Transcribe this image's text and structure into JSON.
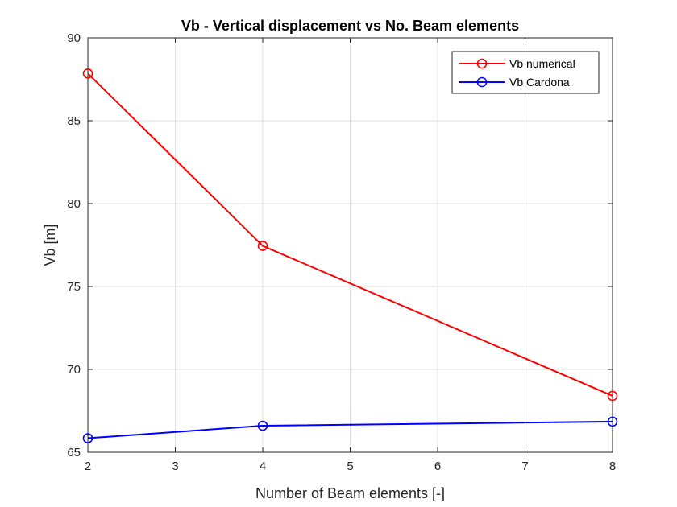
{
  "chart_data": {
    "type": "line",
    "title": "Vb - Vertical displacement vs No. Beam elements",
    "xlabel": "Number of Beam elements [-]",
    "ylabel": "Vb [m]",
    "xlim": [
      2,
      8
    ],
    "ylim": [
      65,
      90
    ],
    "xticks": [
      2,
      3,
      4,
      5,
      6,
      7,
      8
    ],
    "yticks": [
      65,
      70,
      75,
      80,
      85,
      90
    ],
    "grid": true,
    "legend_position": "top-right",
    "x": [
      2,
      4,
      8
    ],
    "series": [
      {
        "name": "Vb numerical",
        "values": [
          87.85,
          77.45,
          68.4
        ],
        "color": "#ff0000",
        "marker": "circle"
      },
      {
        "name": "Vb Cardona",
        "values": [
          65.85,
          66.6,
          66.85
        ],
        "color": "#0000ff",
        "marker": "circle"
      }
    ]
  }
}
